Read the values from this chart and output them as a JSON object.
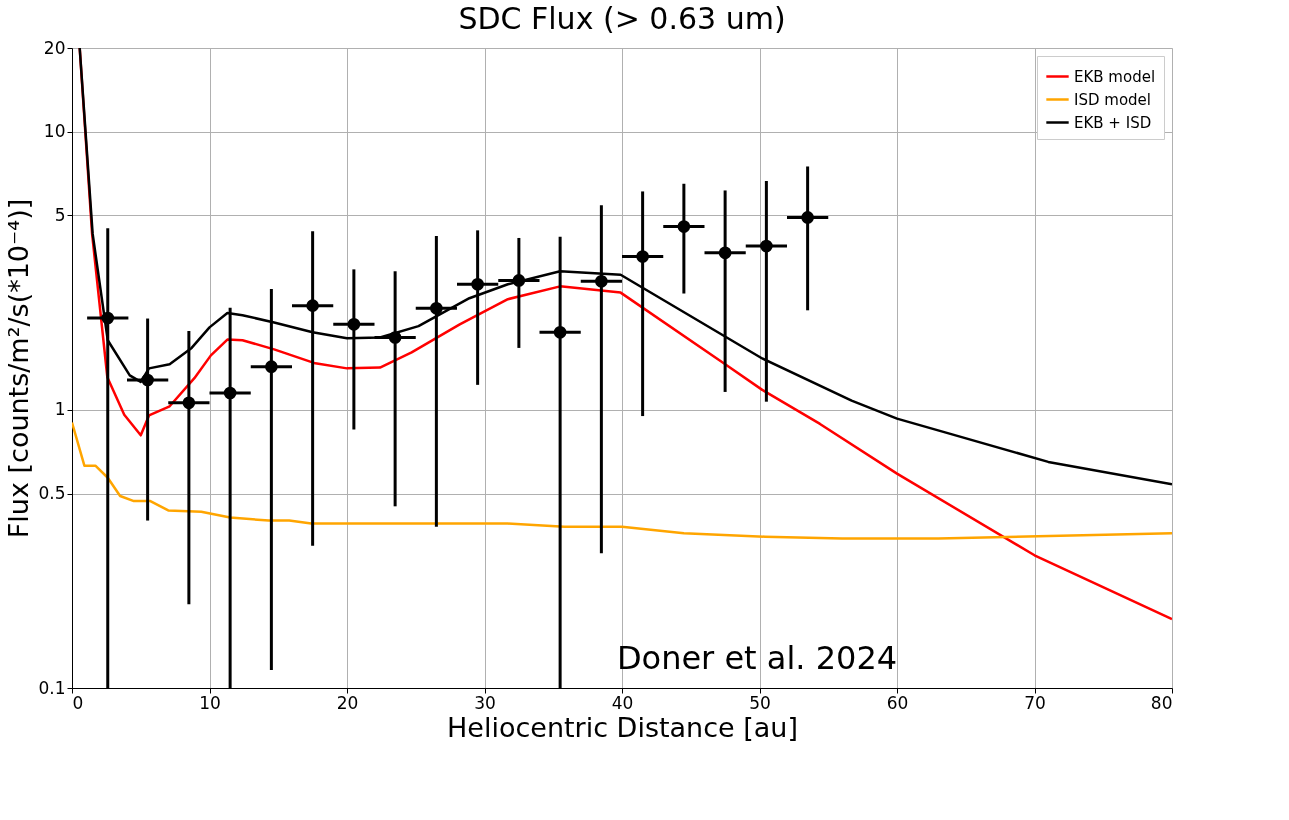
{
  "chart_data": {
    "type": "line",
    "title": "SDC Flux (> 0.63 um)",
    "xlabel": "Heliocentric Distance [au]",
    "ylabel": "Flux [counts/m²/s(*10⁻⁴)]",
    "log": "y",
    "grid": true,
    "legend": "top right",
    "line_style": "solid",
    "xlim": [
      0,
      80
    ],
    "xticks": [
      0,
      10,
      20,
      30,
      40,
      50,
      60,
      70,
      80
    ],
    "ylim": [
      0.1,
      20
    ],
    "yticks": [
      0.1,
      0.5,
      1,
      5,
      10,
      20
    ],
    "annotations": [
      "Doner et al. 2024"
    ],
    "series": [
      {
        "name": "EKB model",
        "color": "#ff0000",
        "marker": "none",
        "x": [
          0.56,
          1.46,
          2.57,
          3.8,
          5.0,
          5.6,
          7.1,
          8.9,
          10.1,
          11.3,
          12.4,
          14.7,
          17.7,
          20.0,
          22.4,
          24.7,
          28.2,
          31.7,
          35.5,
          39.9,
          47.4,
          50.2,
          54.4,
          60,
          70,
          80
        ],
        "values": [
          20,
          4.3,
          1.31,
          0.96,
          0.81,
          0.955,
          1.03,
          1.3,
          1.57,
          1.79,
          1.78,
          1.65,
          1.47,
          1.41,
          1.42,
          1.61,
          2.03,
          2.5,
          2.78,
          2.64,
          1.47,
          1.18,
          0.89,
          0.59,
          0.3,
          0.177
        ]
      },
      {
        "name": "ISD model",
        "color": "#ffa500",
        "marker": "none",
        "x": [
          0,
          0.9,
          1.7,
          2.6,
          3.5,
          4.5,
          5.7,
          7.0,
          9.4,
          11.5,
          14.3,
          15.8,
          17.4,
          26,
          31.7,
          35.8,
          40,
          44.5,
          50.4,
          56,
          63,
          80
        ],
        "values": [
          0.9,
          0.63,
          0.63,
          0.57,
          0.49,
          0.47,
          0.47,
          0.435,
          0.43,
          0.41,
          0.4,
          0.4,
          0.39,
          0.39,
          0.39,
          0.38,
          0.38,
          0.36,
          0.35,
          0.345,
          0.345,
          0.36
        ]
      },
      {
        "name": "EKB + ISD",
        "color": "#000000",
        "marker": "none",
        "x": [
          0.56,
          1.5,
          2.6,
          4.2,
          5.0,
          5.6,
          7.1,
          8.7,
          10.0,
          11.3,
          12.4,
          14.7,
          17.5,
          20.0,
          22.4,
          25.2,
          28.9,
          31.7,
          35.5,
          39.9,
          50.2,
          56.7,
          60,
          63.5,
          71,
          80
        ],
        "values": [
          20,
          4.3,
          1.78,
          1.33,
          1.26,
          1.41,
          1.46,
          1.67,
          1.98,
          2.23,
          2.19,
          2.06,
          1.9,
          1.81,
          1.82,
          2.0,
          2.52,
          2.83,
          3.15,
          3.06,
          1.53,
          1.08,
          0.93,
          0.83,
          0.65,
          0.54
        ]
      },
      {
        "type": "scatter",
        "color": "#000000",
        "marker": "circle",
        "x": [
          2.6,
          5.5,
          8.5,
          11.5,
          14.5,
          17.5,
          20.5,
          23.5,
          26.5,
          29.5,
          32.5,
          35.5,
          38.5,
          41.5,
          44.5,
          47.5,
          50.5,
          53.5
        ],
        "values": [
          2.14,
          1.28,
          1.06,
          1.15,
          1.43,
          2.37,
          2.03,
          1.82,
          2.32,
          2.83,
          2.92,
          1.9,
          2.9,
          3.56,
          4.56,
          3.67,
          3.88,
          4.92
        ],
        "errors": [
          [
            0.1,
            4.5
          ],
          [
            0.4,
            2.13
          ],
          [
            0.2,
            1.92
          ],
          [
            0.1,
            2.33
          ],
          [
            0.116,
            2.72
          ],
          [
            0.325,
            4.39
          ],
          [
            0.85,
            3.2
          ],
          [
            0.45,
            3.15
          ],
          [
            0.38,
            4.22
          ],
          [
            1.23,
            4.42
          ],
          [
            1.67,
            4.15
          ],
          [
            0.1,
            4.19
          ],
          [
            0.305,
            5.44
          ],
          [
            0.95,
            6.1
          ],
          [
            2.62,
            6.5
          ],
          [
            1.16,
            6.15
          ],
          [
            1.07,
            6.65
          ],
          [
            2.28,
            7.5
          ]
        ],
        "xerrors": [
          1.5,
          1.5,
          1.5,
          1.5,
          1.5,
          1.5,
          1.5,
          1.5,
          1.5,
          1.5,
          1.5,
          1.5,
          1.5,
          1.5,
          1.5,
          1.5,
          1.5,
          1.5
        ]
      }
    ]
  }
}
